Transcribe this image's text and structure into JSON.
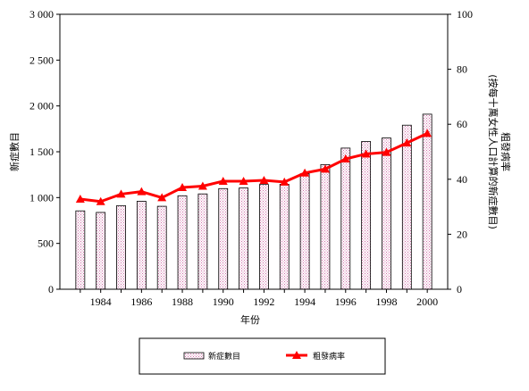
{
  "chart_data": {
    "type": "bar",
    "x": [
      1983,
      1984,
      1985,
      1986,
      1987,
      1988,
      1989,
      1990,
      1991,
      1992,
      1993,
      1994,
      1995,
      1996,
      1997,
      1998,
      1999,
      2000
    ],
    "x_tick_labels": [
      "1984",
      "1986",
      "1988",
      "1990",
      "1992",
      "1994",
      "1996",
      "1998",
      "2000"
    ],
    "series": [
      {
        "name": "新症數目",
        "type": "bar",
        "axis": "left",
        "values": [
          855,
          838,
          912,
          960,
          905,
          1020,
          1040,
          1098,
          1105,
          1143,
          1145,
          1260,
          1360,
          1540,
          1612,
          1650,
          1790,
          1910
        ]
      },
      {
        "name": "粗發病率",
        "type": "line",
        "axis": "right",
        "values": [
          32.8,
          31.9,
          34.6,
          35.5,
          33.3,
          37.0,
          37.5,
          39.3,
          39.3,
          39.6,
          39.0,
          42.3,
          43.7,
          47.4,
          49.2,
          49.8,
          53.2,
          56.7
        ]
      }
    ],
    "xlabel": "年份",
    "ylabel_left": "新症數目",
    "ylabel_right": "粗發病率\n(按每十萬女性人口計算的新症數目)",
    "ylim_left": [
      0,
      3000
    ],
    "ylim_right": [
      0,
      100
    ],
    "yticks_left": [
      "0",
      "500",
      "1 000",
      "1 500",
      "2 000",
      "2 500",
      "3 000"
    ],
    "yticks_right": [
      "0",
      "20",
      "40",
      "60",
      "80",
      "100"
    ],
    "grid": false,
    "legend_position": "bottom",
    "colors": {
      "bar_pattern": "#e8a0c8",
      "line": "#ff0000",
      "axis": "#000000"
    }
  }
}
